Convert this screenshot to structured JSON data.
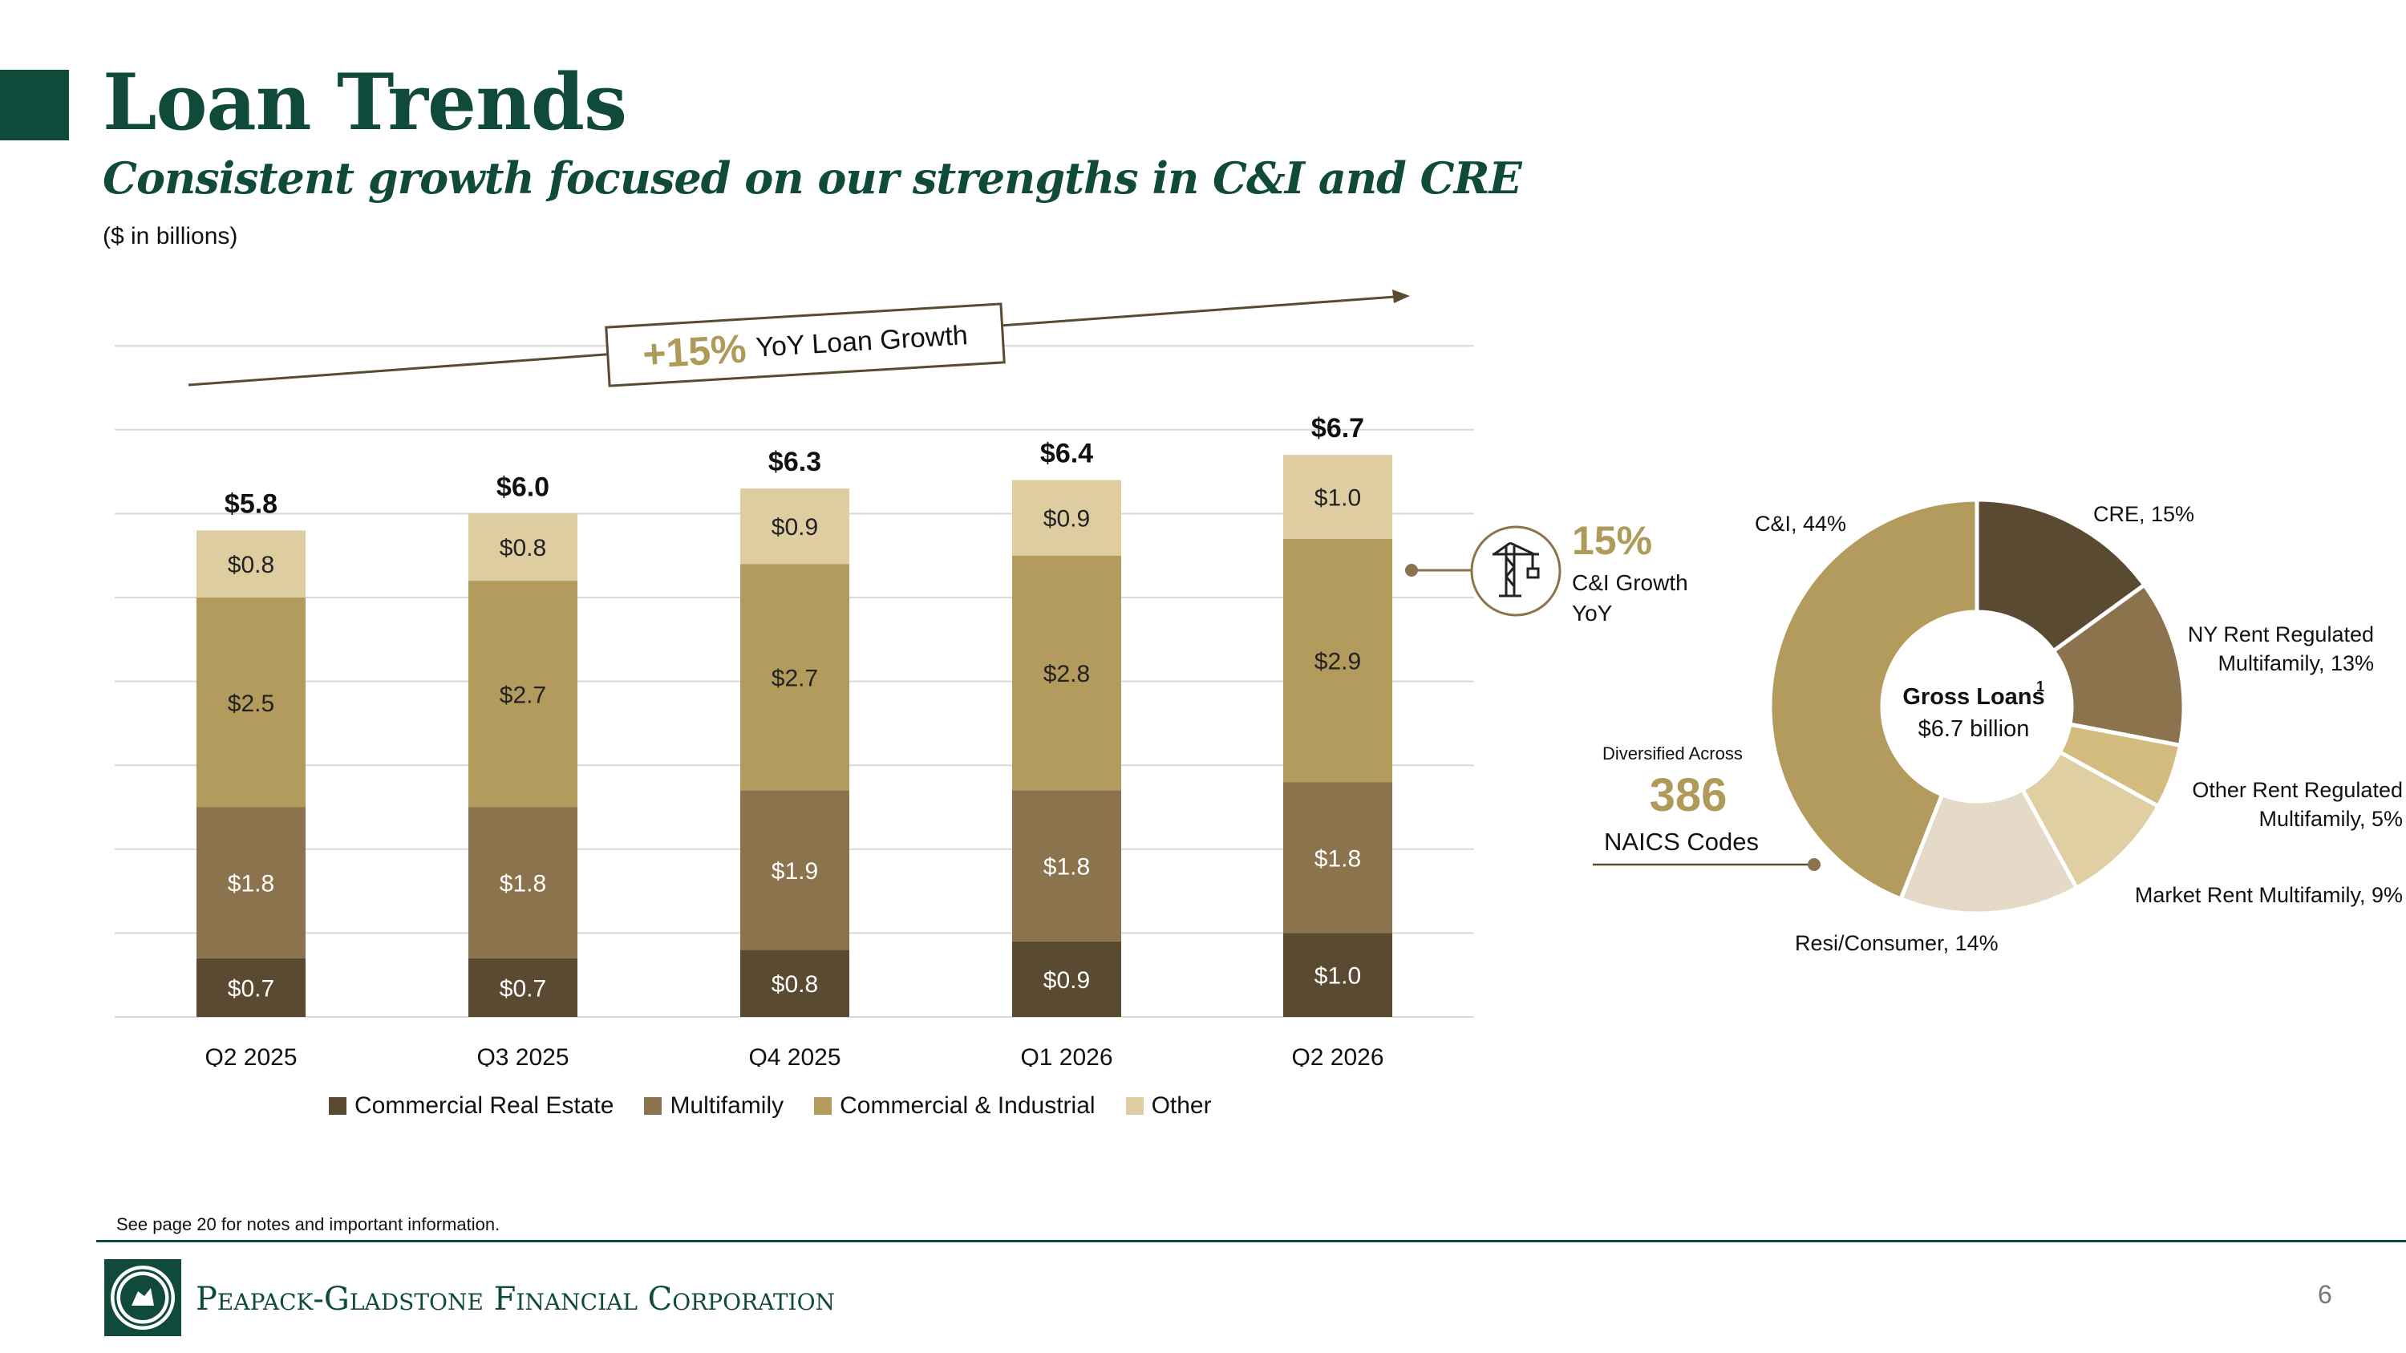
{
  "header": {
    "title": "Loan Trends",
    "subtitle": "Consistent growth focused on our strengths in C&I and CRE",
    "units": "($ in billions)"
  },
  "callout": {
    "pct": "+15%",
    "label": "YoY Loan Growth"
  },
  "ci_growth": {
    "pct": "15%",
    "label_line1": "C&I Growth",
    "label_line2": "YoY"
  },
  "naics": {
    "label": "Diversified Across",
    "value": "386",
    "sub": "NAICS Codes"
  },
  "donut": {
    "title": "Gross Loans",
    "superscript": "1",
    "value": "$6.7 billion"
  },
  "footnote": "See page 20 for notes and important information.",
  "footer": {
    "company": "Peapack-Gladstone Financial Corporation",
    "page": "6"
  },
  "colors": {
    "brand_green": "#0f4a3a",
    "gold": "#b09a5a",
    "cre": "#5a4a32",
    "multifamily": "#8b734d",
    "ci": "#b39b5d",
    "other": "#dfcda2"
  },
  "chart_data": [
    {
      "type": "bar",
      "stacked": true,
      "categories": [
        "Q2 2025",
        "Q3 2025",
        "Q4 2025",
        "Q1 2026",
        "Q2 2026"
      ],
      "series": [
        {
          "name": "Commercial Real Estate",
          "color": "#5a4a32",
          "values": [
            0.7,
            0.7,
            0.8,
            0.9,
            1.0
          ],
          "labels": [
            "$0.7",
            "$0.7",
            "$0.8",
            "$0.9",
            "$1.0"
          ]
        },
        {
          "name": "Multifamily",
          "color": "#8b734d",
          "values": [
            1.8,
            1.8,
            1.9,
            1.8,
            1.8
          ],
          "labels": [
            "$1.8",
            "$1.8",
            "$1.9",
            "$1.8",
            "$1.8"
          ]
        },
        {
          "name": "Commercial & Industrial",
          "color": "#b39b5d",
          "values": [
            2.5,
            2.7,
            2.7,
            2.8,
            2.9
          ],
          "labels": [
            "$2.5",
            "$2.7",
            "$2.7",
            "$2.8",
            "$2.9"
          ]
        },
        {
          "name": "Other",
          "color": "#dfcda2",
          "values": [
            0.8,
            0.8,
            0.9,
            0.9,
            1.0
          ],
          "labels": [
            "$0.8",
            "$0.8",
            "$0.9",
            "$0.9",
            "$1.0"
          ]
        }
      ],
      "totals": [
        5.8,
        6.0,
        6.3,
        6.4,
        6.7
      ],
      "total_labels": [
        "$5.8",
        "$6.0",
        "$6.3",
        "$6.4",
        "$6.7"
      ],
      "ylim": [
        0,
        8
      ],
      "grid": true,
      "legend": "bottom"
    },
    {
      "type": "pie",
      "donut": true,
      "slices": [
        {
          "label": "CRE, 15%",
          "value": 15,
          "color": "#5a4a32"
        },
        {
          "label": "NY Rent Regulated Multifamily, 13%",
          "value": 13,
          "color": "#8b734d"
        },
        {
          "label": "Other Rent Regulated Multifamily, 5%",
          "value": 5,
          "color": "#d4bc7e"
        },
        {
          "label": "Market Rent Multifamily, 9%",
          "value": 9,
          "color": "#e0cfa3"
        },
        {
          "label": "Resi/Consumer, 14%",
          "value": 14,
          "color": "#e4dac7"
        },
        {
          "label": "C&I, 44%",
          "value": 44,
          "color": "#b39b5d"
        }
      ]
    }
  ]
}
